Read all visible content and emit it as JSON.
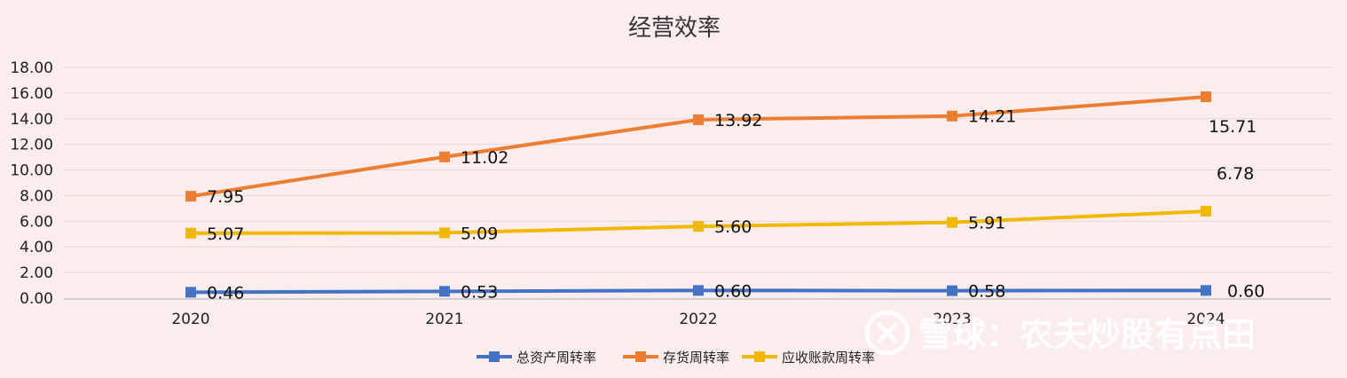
{
  "watermark": {
    "text": "雪球：农夫炒股有点田"
  },
  "chart_data": {
    "type": "line",
    "title": "经营效率",
    "categories": [
      "2020",
      "2021",
      "2022",
      "2023",
      "2024"
    ],
    "y_tick_labels": [
      "0.00",
      "2.00",
      "4.00",
      "6.00",
      "8.00",
      "10.00",
      "12.00",
      "14.00",
      "16.00",
      "18.00"
    ],
    "ylim": [
      0,
      18
    ],
    "grid": true,
    "legend_position": "bottom",
    "series": [
      {
        "name": "总资产周转率",
        "color": "#4472c4",
        "values": [
          0.46,
          0.53,
          0.6,
          0.58,
          0.6
        ],
        "labels": [
          "0.46",
          "0.53",
          "0.60",
          "0.58",
          "0.60"
        ]
      },
      {
        "name": "存货周转率",
        "color": "#ed7d31",
        "values": [
          7.95,
          11.02,
          13.92,
          14.21,
          15.71
        ],
        "labels": [
          "7.95",
          "11.02",
          "13.92",
          "14.21",
          "15.71"
        ]
      },
      {
        "name": "应收账款周转率",
        "color": "#f0b800",
        "values": [
          5.07,
          5.09,
          5.6,
          5.91,
          6.78
        ],
        "labels": [
          "5.07",
          "5.09",
          "5.60",
          "5.91",
          "6.78"
        ]
      }
    ]
  }
}
